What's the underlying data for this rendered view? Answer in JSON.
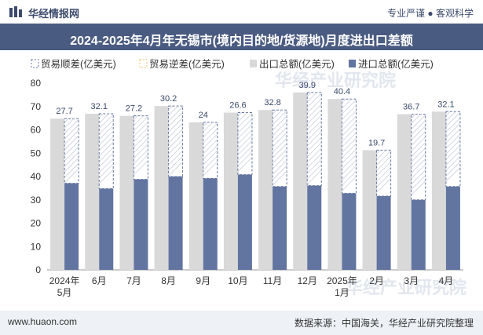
{
  "header": {
    "brand": "华经情报网",
    "slogan": "专业严谨 ● 客观科学"
  },
  "title": "2024-2025年4月年无锡市(境内目的地/货源地)月度进出口差额",
  "footer": {
    "site": "www.huaon.com",
    "source": "数据来源：中国海关，华经产业研究院整理"
  },
  "watermark": "华经产业研究院",
  "colors": {
    "export": "#d9d9d9",
    "import": "#6274a0",
    "surplus_border": "#6274a0",
    "deficit_border": "#e8c06a",
    "title_bg": "#4a5b82"
  },
  "chart_data": {
    "type": "bar",
    "title": "2024-2025年4月年无锡市(境内目的地/货源地)月度进出口差额",
    "categories": [
      "2024年\n5月",
      "6月",
      "7月",
      "8月",
      "9月",
      "10月",
      "11月",
      "12月",
      "2025年\n1月",
      "2月",
      "3月",
      "4月"
    ],
    "series": [
      {
        "name": "贸易顺差(亿美元)",
        "values": [
          27.7,
          32.1,
          27.2,
          30.2,
          24,
          26.6,
          32.8,
          39.9,
          40.4,
          19.7,
          36.7,
          32.1
        ]
      },
      {
        "name": "贸易逆差(亿美元)",
        "values": [
          null,
          null,
          null,
          null,
          null,
          null,
          null,
          null,
          null,
          null,
          null,
          null
        ]
      },
      {
        "name": "出口总额(亿美元)",
        "values": [
          64.8,
          66.9,
          66.0,
          70.2,
          63.2,
          67.4,
          68.5,
          76.0,
          73.2,
          51.3,
          66.7,
          67.8
        ]
      },
      {
        "name": "进口总额(亿美元)",
        "values": [
          37.1,
          34.8,
          38.8,
          40.0,
          39.2,
          40.8,
          35.7,
          36.1,
          32.8,
          31.6,
          30.0,
          35.7
        ]
      }
    ],
    "data_labels": [
      "27.7",
      "32.1",
      "27.2",
      "30.2",
      "24",
      "26.6",
      "32.8",
      "39.9",
      "40.4",
      "19.7",
      "36.7",
      "32.1"
    ],
    "ylim": [
      0,
      80
    ],
    "yticks": [
      0,
      10,
      20,
      30,
      40,
      50,
      60,
      70,
      80
    ],
    "xlabel": "",
    "ylabel": "",
    "legend_position": "top",
    "grid": false
  }
}
